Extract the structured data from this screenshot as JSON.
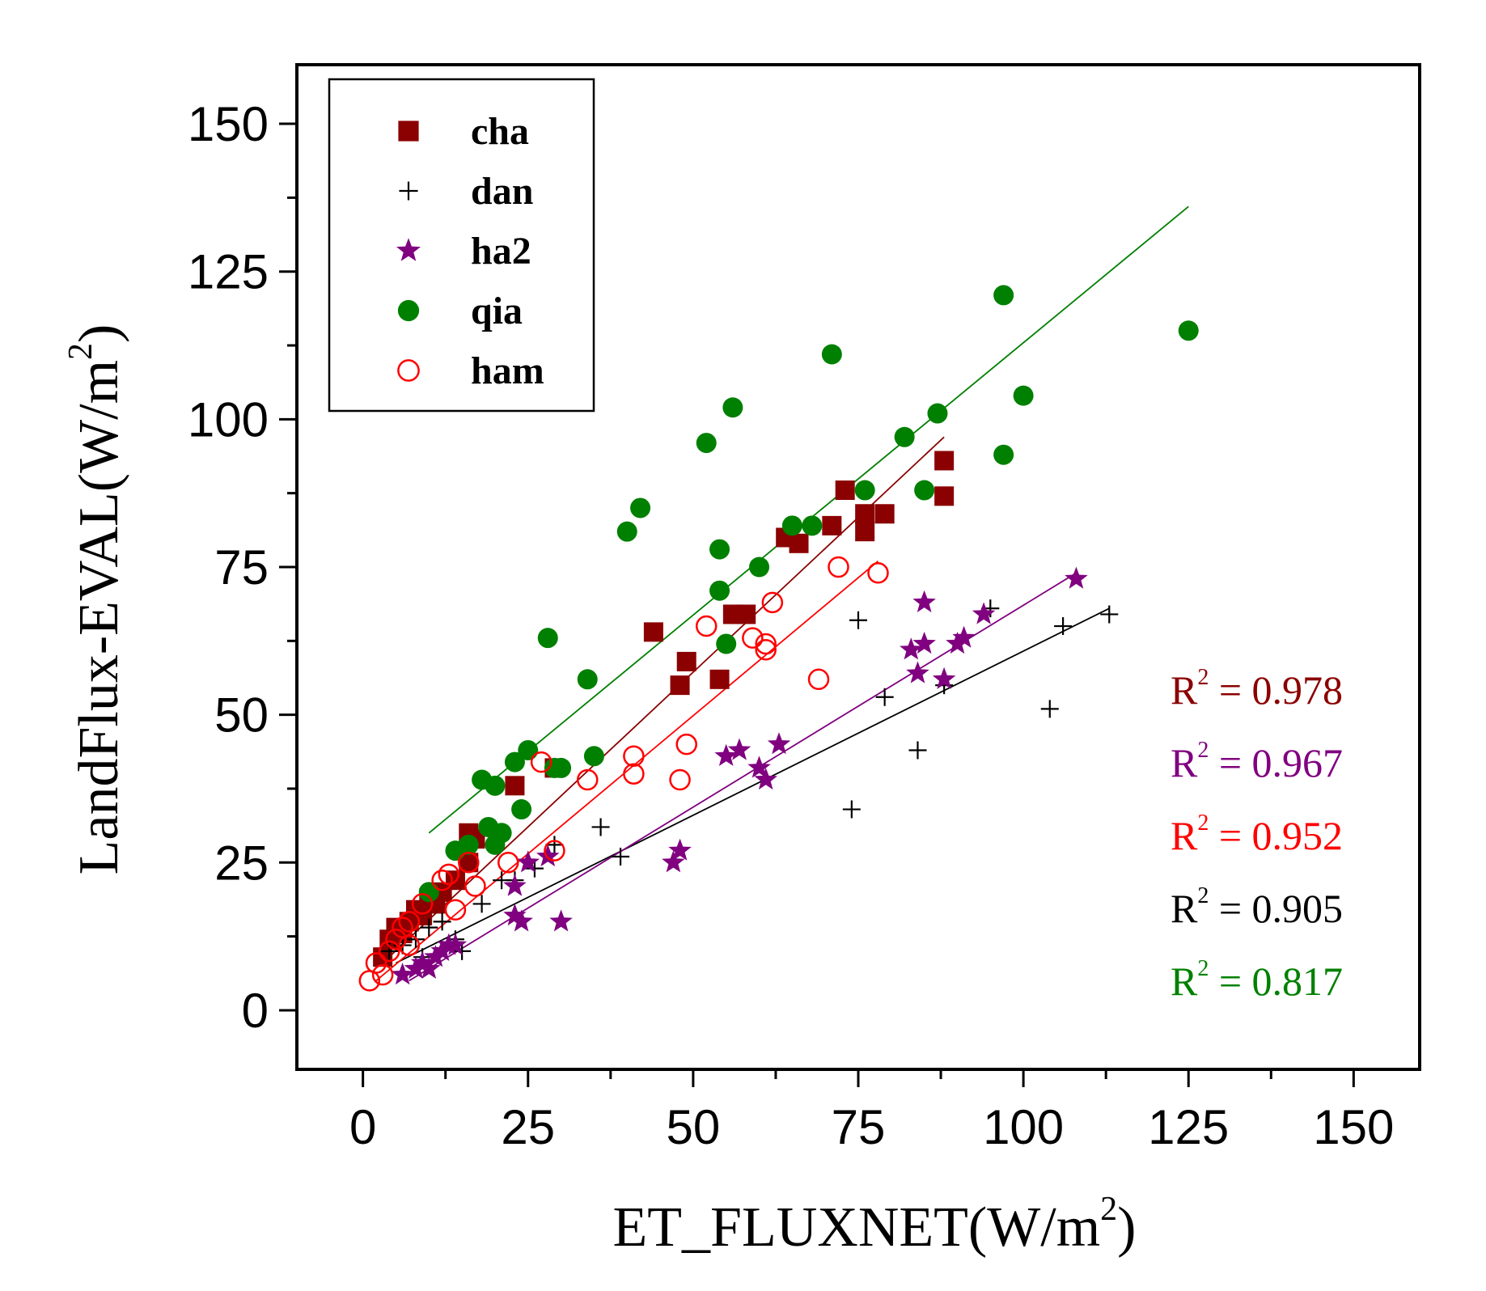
{
  "chart_data": {
    "type": "scatter",
    "xlabel": "ET_FLUXNET(W/m",
    "xlabel_sup": "2",
    "xlabel_close": ")",
    "ylabel": "LandFlux-EVAL(W/m",
    "ylabel_sup": "2",
    "ylabel_close": ")",
    "xlim": [
      -10,
      160
    ],
    "ylim": [
      -10,
      160
    ],
    "xticks": [
      0,
      25,
      50,
      75,
      100,
      125,
      150
    ],
    "yticks": [
      0,
      25,
      50,
      75,
      100,
      125,
      150
    ],
    "legend_position": "top-left",
    "series": [
      {
        "name": "cha",
        "color": "#8b0000",
        "marker": "filled-square",
        "r2_label": "R",
        "r2_sup": "2",
        "r2_value": " = 0.978",
        "fit": [
          [
            3,
            8
          ],
          [
            88,
            97
          ]
        ],
        "points": [
          [
            3,
            9
          ],
          [
            4,
            12
          ],
          [
            5,
            14
          ],
          [
            6,
            13
          ],
          [
            7,
            15
          ],
          [
            8,
            17
          ],
          [
            9,
            16
          ],
          [
            10,
            19
          ],
          [
            11,
            18
          ],
          [
            16,
            30
          ],
          [
            17,
            29
          ],
          [
            23,
            38
          ],
          [
            29,
            41
          ],
          [
            44,
            64
          ],
          [
            48,
            55
          ],
          [
            49,
            59
          ],
          [
            54,
            56
          ],
          [
            56,
            67
          ],
          [
            58,
            67
          ],
          [
            64,
            80
          ],
          [
            66,
            79
          ],
          [
            71,
            82
          ],
          [
            73,
            88
          ],
          [
            76,
            81
          ],
          [
            76,
            84
          ],
          [
            79,
            84
          ],
          [
            88,
            87
          ],
          [
            88,
            93
          ],
          [
            12,
            20
          ],
          [
            14,
            22
          ],
          [
            16,
            25
          ]
        ]
      },
      {
        "name": "dan",
        "color": "#000000",
        "marker": "plus",
        "r2_label": "R",
        "r2_sup": "2",
        "r2_value": " = 0.905",
        "fit": [
          [
            5,
            8
          ],
          [
            113,
            68
          ]
        ],
        "points": [
          [
            4,
            10
          ],
          [
            6,
            11
          ],
          [
            8,
            12
          ],
          [
            10,
            14
          ],
          [
            12,
            15
          ],
          [
            14,
            12
          ],
          [
            15,
            10
          ],
          [
            21,
            22
          ],
          [
            23,
            22
          ],
          [
            26,
            24
          ],
          [
            29,
            28
          ],
          [
            36,
            31
          ],
          [
            39,
            26
          ],
          [
            74,
            34
          ],
          [
            75,
            66
          ],
          [
            79,
            53
          ],
          [
            84,
            44
          ],
          [
            88,
            55
          ],
          [
            95,
            68
          ],
          [
            104,
            51
          ],
          [
            106,
            65
          ],
          [
            113,
            67
          ],
          [
            18,
            18
          ],
          [
            9,
            9
          ]
        ]
      },
      {
        "name": "ha2",
        "color": "#800080",
        "marker": "star",
        "r2_label": "R",
        "r2_sup": "2",
        "r2_value": " = 0.967",
        "fit": [
          [
            7,
            5
          ],
          [
            108,
            74
          ]
        ],
        "points": [
          [
            6,
            6
          ],
          [
            8,
            7
          ],
          [
            9,
            8
          ],
          [
            10,
            7
          ],
          [
            11,
            9
          ],
          [
            12,
            10
          ],
          [
            13,
            11
          ],
          [
            14,
            11
          ],
          [
            23,
            16
          ],
          [
            23,
            21
          ],
          [
            24,
            15
          ],
          [
            25,
            25
          ],
          [
            28,
            26
          ],
          [
            30,
            15
          ],
          [
            47,
            25
          ],
          [
            48,
            27
          ],
          [
            55,
            43
          ],
          [
            57,
            44
          ],
          [
            60,
            41
          ],
          [
            61,
            39
          ],
          [
            63,
            45
          ],
          [
            83,
            61
          ],
          [
            84,
            57
          ],
          [
            85,
            62
          ],
          [
            85,
            69
          ],
          [
            88,
            56
          ],
          [
            90,
            62
          ],
          [
            91,
            63
          ],
          [
            94,
            67
          ],
          [
            108,
            73
          ]
        ]
      },
      {
        "name": "qia",
        "color": "#008000",
        "marker": "filled-circle",
        "r2_label": "R",
        "r2_sup": "2",
        "r2_value": " = 0.817",
        "fit": [
          [
            10,
            30
          ],
          [
            125,
            136
          ]
        ],
        "points": [
          [
            10,
            20
          ],
          [
            14,
            27
          ],
          [
            16,
            28
          ],
          [
            18,
            39
          ],
          [
            19,
            31
          ],
          [
            20,
            28
          ],
          [
            20,
            38
          ],
          [
            21,
            30
          ],
          [
            23,
            42
          ],
          [
            24,
            34
          ],
          [
            25,
            44
          ],
          [
            28,
            63
          ],
          [
            29,
            41
          ],
          [
            30,
            41
          ],
          [
            34,
            56
          ],
          [
            35,
            43
          ],
          [
            40,
            81
          ],
          [
            42,
            85
          ],
          [
            52,
            96
          ],
          [
            54,
            71
          ],
          [
            54,
            78
          ],
          [
            55,
            62
          ],
          [
            56,
            102
          ],
          [
            60,
            75
          ],
          [
            65,
            82
          ],
          [
            68,
            82
          ],
          [
            71,
            111
          ],
          [
            76,
            88
          ],
          [
            82,
            97
          ],
          [
            85,
            88
          ],
          [
            87,
            101
          ],
          [
            97,
            121
          ],
          [
            97,
            94
          ],
          [
            100,
            104
          ],
          [
            125,
            115
          ]
        ]
      },
      {
        "name": "ham",
        "color": "#ff0000",
        "marker": "open-circle",
        "r2_label": "R",
        "r2_sup": "2",
        "r2_value": " = 0.952",
        "fit": [
          [
            2,
            5
          ],
          [
            78,
            76
          ]
        ],
        "points": [
          [
            1,
            5
          ],
          [
            2,
            8
          ],
          [
            3,
            6
          ],
          [
            4,
            10
          ],
          [
            5,
            12
          ],
          [
            6,
            14
          ],
          [
            7,
            15
          ],
          [
            7,
            11
          ],
          [
            9,
            18
          ],
          [
            12,
            22
          ],
          [
            13,
            23
          ],
          [
            14,
            17
          ],
          [
            16,
            25
          ],
          [
            17,
            21
          ],
          [
            22,
            25
          ],
          [
            27,
            42
          ],
          [
            29,
            27
          ],
          [
            34,
            39
          ],
          [
            41,
            40
          ],
          [
            41,
            43
          ],
          [
            48,
            39
          ],
          [
            49,
            45
          ],
          [
            52,
            65
          ],
          [
            59,
            63
          ],
          [
            61,
            61
          ],
          [
            61,
            62
          ],
          [
            62,
            69
          ],
          [
            69,
            56
          ],
          [
            72,
            75
          ],
          [
            78,
            74
          ]
        ]
      }
    ],
    "r2_order": [
      0,
      2,
      4,
      1,
      3
    ]
  }
}
